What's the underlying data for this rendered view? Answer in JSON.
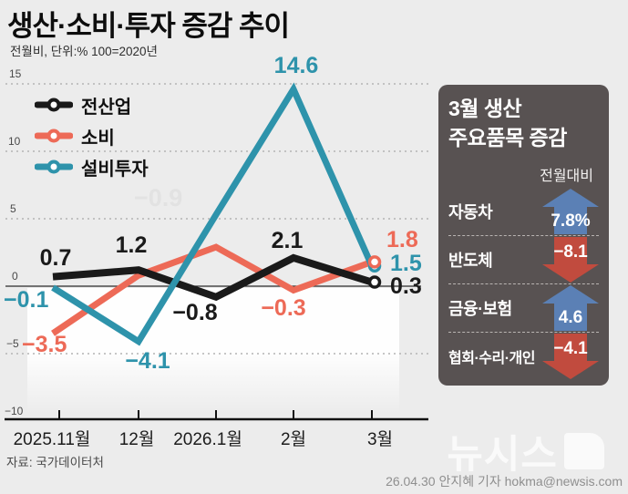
{
  "header": {
    "title": "생산·소비·투자 증감 추이",
    "subtitle": "전월비, 단위:% 100=2020년"
  },
  "legend": {
    "items": [
      {
        "label": "전산업",
        "color": "#1a1a1a"
      },
      {
        "label": "소비",
        "color": "#ed6a57"
      },
      {
        "label": "설비투자",
        "color": "#2e93ab"
      }
    ]
  },
  "chart_data": {
    "type": "line",
    "title": "생산·소비·투자 증감 추이",
    "unit_note": "전월비, 단위:% 100=2020년",
    "categories": [
      "2025.11월",
      "12월",
      "2026.1월",
      "2월",
      "3월"
    ],
    "series": [
      {
        "name": "전산업",
        "color": "#1a1a1a",
        "values": [
          0.7,
          1.2,
          -0.8,
          2.1,
          0.3
        ],
        "labels": [
          "0.7",
          "1.2",
          "−0.8",
          "2.1",
          "0.3"
        ]
      },
      {
        "name": "소비",
        "color": "#ed6a57",
        "values": [
          -3.5,
          0.8,
          2.9,
          -0.3,
          1.8
        ],
        "labels": [
          "−3.5",
          "",
          "",
          "−0.3",
          "1.8"
        ]
      },
      {
        "name": "설비투자",
        "color": "#2e93ab",
        "values": [
          -0.1,
          -4.1,
          5.3,
          14.6,
          1.5
        ],
        "labels": [
          "−0.1",
          "−4.1",
          "",
          "14.6",
          "1.5"
        ]
      }
    ],
    "ylim": [
      -10,
      15
    ],
    "ytick_labels": [
      "15",
      "10",
      "5",
      "0",
      "−5",
      "−10"
    ],
    "grid": "horizontal dotted",
    "legend_position": "upper-left"
  },
  "ghost_label": "−0.9",
  "side_panel": {
    "title_line1": "3월 생산",
    "title_line2": "주요품목 증감",
    "column_header": "전월대비",
    "rows": [
      {
        "label": "자동차",
        "value": "7.8%",
        "direction": "up"
      },
      {
        "label": "반도체",
        "value": "−8.1",
        "direction": "down"
      },
      {
        "label": "금융·보험",
        "value": "4.6",
        "direction": "up"
      },
      {
        "label": "협회·수리·개인",
        "value": "−4.1",
        "direction": "down"
      }
    ]
  },
  "footer": {
    "source": "자료: 국가데이터처",
    "credit": "26.04.30 안지혜 기자 hokma@newsis.com",
    "logo_text": "뉴시스"
  },
  "colors": {
    "background": "#ececec",
    "all_industry": "#1a1a1a",
    "consumption": "#ed6a57",
    "facility_investment": "#2e93ab",
    "panel_bg": "#585252",
    "arrow_up": "#5b80b5",
    "arrow_down": "#c14b3e"
  }
}
